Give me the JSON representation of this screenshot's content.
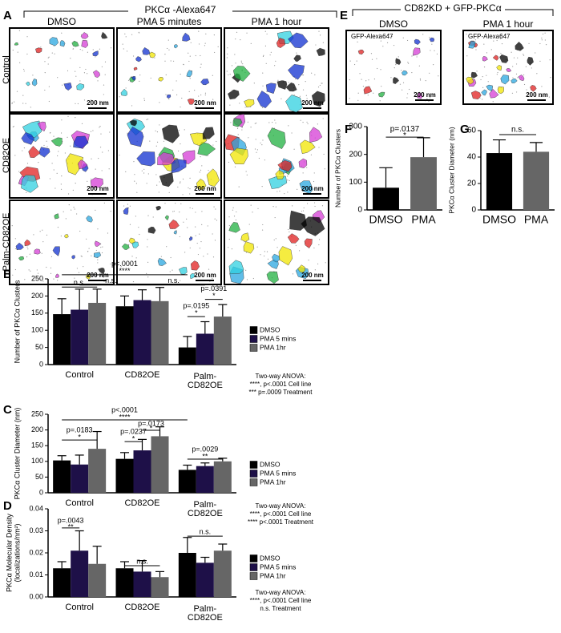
{
  "figure": {
    "panels": [
      "A",
      "B",
      "C",
      "D",
      "E",
      "F",
      "G"
    ],
    "panel_a": {
      "title": "PKCα -Alexa647",
      "columns": [
        "DMSO",
        "PMA 5 minutes",
        "PMA 1 hour"
      ],
      "rows": [
        "Control",
        "CD82OE",
        "Palm-CD82OE"
      ],
      "scale_bar": "200 nm"
    },
    "panel_e": {
      "title": "CD82KD + GFP-PKCα",
      "columns": [
        "DMSO",
        "PMA 1 hour"
      ],
      "image_label": "GFP-Alexa647",
      "scale_bar": "200 nm"
    }
  },
  "chart_data": [
    {
      "type": "bar",
      "ylabel": [
        "Number of PKCα Clusters"
      ],
      "categories": [
        "Control",
        "CD82OE",
        "Palm-CD82OE"
      ],
      "series": [
        {
          "name": "DMSO",
          "color": "#000000",
          "values": [
            147,
            170,
            50
          ],
          "errors": [
            45,
            30,
            32
          ]
        },
        {
          "name": "PMA 5 mins",
          "color": "#1e1048",
          "values": [
            160,
            188,
            90
          ],
          "errors": [
            60,
            30,
            35
          ]
        },
        {
          "name": "PMA 1hr",
          "color": "#666666",
          "values": [
            180,
            185,
            140
          ],
          "errors": [
            40,
            40,
            35
          ]
        }
      ],
      "ylim": [
        0,
        250
      ],
      "yticks": [
        0,
        50,
        100,
        150,
        200,
        250
      ],
      "annotations": [
        "n.s.",
        "p<.0001",
        "****",
        "n.s.",
        "n.s.",
        "p=.0391",
        "*",
        "p=.0195",
        "*"
      ],
      "anova": [
        "Two-way ANOVA:",
        "****, p<.0001 Cell line",
        "*** p=.0009 Treatment"
      ]
    },
    {
      "type": "bar",
      "ylabel": [
        "PKCα Cluster Diameter (nm)"
      ],
      "categories": [
        "Control",
        "CD82OE",
        "Palm-CD82OE"
      ],
      "series": [
        {
          "name": "DMSO",
          "color": "#000000",
          "values": [
            103,
            108,
            73
          ],
          "errors": [
            15,
            20,
            15
          ]
        },
        {
          "name": "PMA 5 mins",
          "color": "#1e1048",
          "values": [
            90,
            135,
            85
          ],
          "errors": [
            30,
            35,
            10
          ]
        },
        {
          "name": "PMA 1hr",
          "color": "#666666",
          "values": [
            140,
            180,
            100
          ],
          "errors": [
            55,
            30,
            10
          ]
        }
      ],
      "ylim": [
        0,
        250
      ],
      "yticks": [
        0,
        50,
        100,
        150,
        200,
        250
      ],
      "annotations": [
        "p=.0183",
        "*",
        "p<.0001",
        "****",
        "p=.0173",
        "*",
        "p=.0237",
        "*",
        "p=.0029",
        "**"
      ],
      "anova": [
        "Two-way ANOVA:",
        "****, p<.0001 Cell line",
        "**** p<.0001 Treatment"
      ]
    },
    {
      "type": "bar",
      "ylabel": [
        "PKCα Molecular Density",
        "(localizations/nm²)"
      ],
      "categories": [
        "Control",
        "CD82OE",
        "Palm-CD82OE"
      ],
      "series": [
        {
          "name": "DMSO",
          "color": "#000000",
          "values": [
            0.013,
            0.013,
            0.02
          ],
          "errors": [
            0.003,
            0.003,
            0.007
          ]
        },
        {
          "name": "PMA 5 mins",
          "color": "#1e1048",
          "values": [
            0.021,
            0.0115,
            0.0155
          ],
          "errors": [
            0.009,
            0.005,
            0.0025
          ]
        },
        {
          "name": "PMA 1hr",
          "color": "#666666",
          "values": [
            0.015,
            0.009,
            0.021
          ],
          "errors": [
            0.008,
            0.0025,
            0.003
          ]
        }
      ],
      "ylim": [
        0,
        0.04
      ],
      "yticks": [
        {
          "value": 0,
          "label": "0.00"
        },
        0.01,
        0.02,
        0.03,
        0.04
      ],
      "annotations": [
        "p=.0043",
        "**",
        "n.s.",
        "n.s."
      ],
      "anova": [
        "Two-way ANOVA:",
        "****, p<.0001 Cell line",
        "n.s. Treatment"
      ]
    },
    {
      "type": "bar",
      "ylabel": [
        "Number of PKCα Clusters"
      ],
      "categories": [
        "DMSO",
        "PMA"
      ],
      "values": [
        80,
        190
      ],
      "errors": [
        72,
        70
      ],
      "colors": [
        "#000000",
        "#666666"
      ],
      "ylim": [
        0,
        300
      ],
      "yticks": [
        0,
        100,
        200,
        300
      ],
      "annotations": [
        "p=.0137",
        "*"
      ]
    },
    {
      "type": "bar",
      "ylabel": [
        "PKCα Cluster Diameter (nm)"
      ],
      "categories": [
        "DMSO",
        "PMA"
      ],
      "values": [
        43,
        44
      ],
      "errors": [
        10,
        7
      ],
      "colors": [
        "#000000",
        "#666666"
      ],
      "ylim": [
        0,
        60
      ],
      "yticks": [
        0,
        20,
        40,
        60
      ],
      "annotations": [
        "n.s."
      ]
    }
  ]
}
